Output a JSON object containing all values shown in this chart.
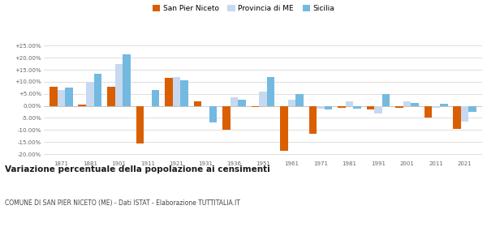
{
  "years": [
    1871,
    1881,
    1901,
    1911,
    1921,
    1931,
    1936,
    1951,
    1961,
    1971,
    1981,
    1991,
    2001,
    2011,
    2021
  ],
  "san_pier_niceto": [
    8.0,
    0.5,
    7.8,
    -15.5,
    11.5,
    1.8,
    -10.0,
    -0.5,
    -18.5,
    -11.5,
    -0.8,
    -1.5,
    -0.8,
    -5.0,
    -9.5
  ],
  "provincia_me": [
    6.5,
    10.0,
    17.5,
    -0.5,
    12.0,
    -0.3,
    3.5,
    6.0,
    2.5,
    -1.2,
    2.0,
    -3.0,
    2.0,
    -0.8,
    -6.5
  ],
  "sicilia": [
    7.5,
    13.5,
    21.5,
    6.5,
    10.5,
    -7.0,
    2.5,
    12.0,
    5.0,
    -1.5,
    -1.0,
    5.0,
    1.2,
    0.8,
    -2.5
  ],
  "color_spn": "#d95f02",
  "color_pme": "#c6d9f0",
  "color_sic": "#74b9e0",
  "legend_labels": [
    "San Pier Niceto",
    "Provincia di ME",
    "Sicilia"
  ],
  "title": "Variazione percentuale della popolazione ai censimenti",
  "subtitle": "COMUNE DI SAN PIER NICETO (ME) - Dati ISTAT - Elaborazione TUTTITALIA.IT",
  "ylim": [
    -22,
    27
  ],
  "yticks": [
    -20,
    -15,
    -10,
    -5,
    0,
    5,
    10,
    15,
    20,
    25
  ],
  "ytick_labels": [
    "-20.00%",
    "-15.00%",
    "-10.00%",
    "-5.00%",
    "0.00%",
    "+5.00%",
    "+10.00%",
    "+15.00%",
    "+20.00%",
    "+25.00%"
  ],
  "background_color": "#ffffff",
  "grid_color": "#d0d0d0",
  "bar_width": 0.27
}
